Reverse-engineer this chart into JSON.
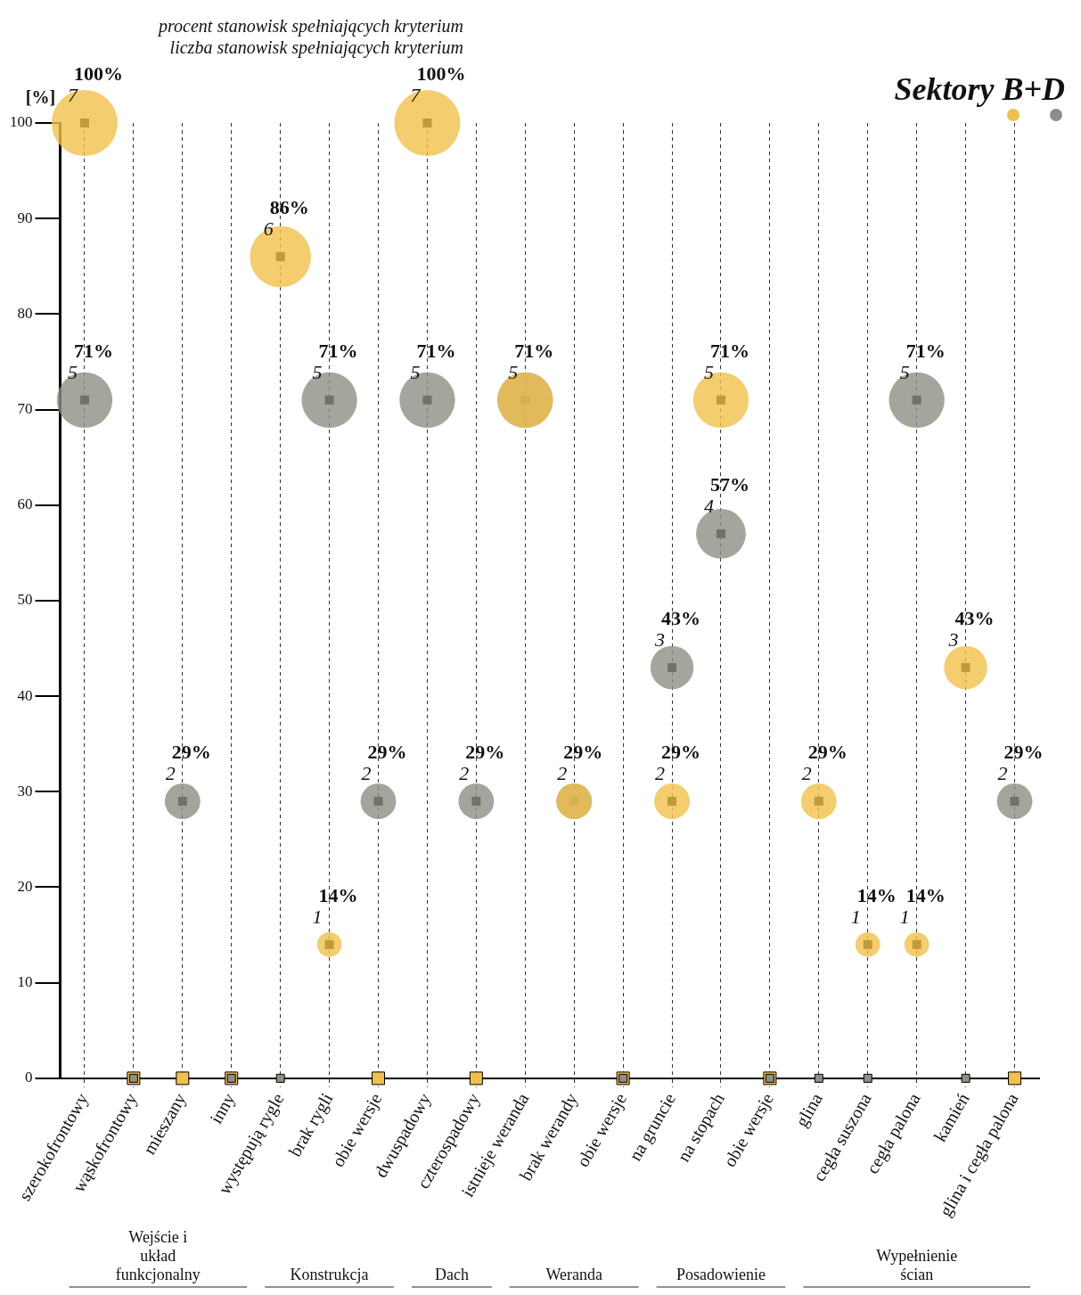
{
  "chart_data": {
    "type": "bubble",
    "title": "Sektory B+D",
    "ylabel": "[%]",
    "annotations": [
      "procent stanowisk spełniających kryterium",
      "liczba stanowisk spełniających kryterium",
      "Wejście i układ funkcjonalny",
      "Konstrukcja",
      "Dach",
      "Weranda",
      "Posadowienie",
      "Wypełnienie ścian"
    ],
    "categories": [
      "szerokofrontowy",
      "wąskofrontowy",
      "mieszany",
      "inny",
      "występują rygle",
      "brak rygli",
      "obie wersje",
      "dwuspadowy",
      "czterospadowy",
      "istnieje weranda",
      "brak werandy",
      "obie wersje",
      "na gruncie",
      "na stopach",
      "obie wersje",
      "glina",
      "cegła suszona",
      "cegła palona",
      "kamień",
      "glina i cegła palona"
    ],
    "series": [
      {
        "color": "#f0c04a",
        "values": [
          100,
          0,
          0,
          0,
          86,
          14,
          0,
          100,
          0,
          71,
          29,
          0,
          29,
          71,
          0,
          29,
          14,
          14,
          43,
          0
        ],
        "sizes": [
          1,
          null,
          null,
          null,
          0.86,
          0.14,
          null,
          1,
          null,
          0.71,
          0.29,
          null,
          0.29,
          0.71,
          null,
          0.29,
          0.14,
          0.14,
          0.43,
          null
        ],
        "value_labels": [
          "100%\n7",
          null,
          null,
          null,
          "86%\n6",
          "14%\n1",
          null,
          "100%\n7",
          null,
          null,
          null,
          null,
          "29%\n2",
          "71%\n5",
          null,
          "29%\n2",
          "14%\n1",
          "14%\n1",
          "43%\n3",
          null
        ]
      },
      {
        "color": "#8e8e86",
        "values": [
          71,
          0,
          29,
          0,
          0,
          71,
          29,
          71,
          29,
          71,
          29,
          0,
          43,
          57,
          0,
          0,
          0,
          71,
          0,
          29
        ],
        "sizes": [
          0.71,
          null,
          0.29,
          null,
          null,
          0.71,
          0.29,
          0.71,
          0.29,
          0.71,
          0.29,
          null,
          0.43,
          0.57,
          null,
          null,
          null,
          0.71,
          null,
          0.29
        ],
        "value_labels": [
          "71%\n5",
          null,
          "29%\n2",
          null,
          null,
          "71%\n5",
          "29%\n2",
          "71%\n5",
          "29%\n2",
          "71%\n5",
          "29%\n2",
          null,
          "43%\n3",
          "57%\n4",
          null,
          null,
          null,
          "71%\n5",
          null,
          "29%\n2"
        ]
      }
    ],
    "ylim": [
      0,
      100
    ],
    "yticks": [
      0,
      10,
      20,
      30,
      40,
      50,
      60,
      70,
      80,
      90,
      100
    ],
    "grid": "x",
    "legend": false
  }
}
